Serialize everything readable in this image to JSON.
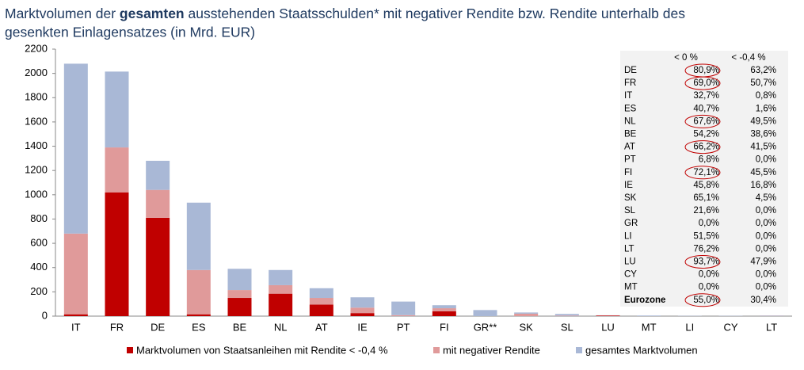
{
  "chart_data": {
    "type": "stacked_bar",
    "title": [
      "Marktvolumen der ",
      "gesamten",
      " ausstehenden Staatsschulden* mit negativer Rendite bzw. Rendite unterhalb des",
      "gesenkten Einlagensatzes (in Mrd. EUR)"
    ],
    "categories": [
      "IT",
      "FR",
      "DE",
      "ES",
      "BE",
      "NL",
      "AT",
      "IE",
      "PT",
      "FI",
      "GR**",
      "SK",
      "SL",
      "LU",
      "MT",
      "LI",
      "CY",
      "LT"
    ],
    "series": [
      {
        "name": "Marktvolumen von Staatsanleihen mit Rendite < -0,4 %",
        "color": "#c00000",
        "values": [
          15,
          1020,
          810,
          15,
          150,
          185,
          95,
          25,
          0,
          40,
          0,
          0,
          0,
          5,
          0,
          0,
          0,
          0
        ]
      },
      {
        "name": "mit negativer Rendite",
        "color": "#e09a9a",
        "values": [
          665,
          370,
          230,
          365,
          65,
          70,
          55,
          45,
          8,
          25,
          0,
          20,
          4,
          1,
          0,
          0,
          0,
          2
        ]
      },
      {
        "name": "gesamtes Marktvolumen",
        "color": "#a9b8d6",
        "values": [
          1400,
          625,
          240,
          555,
          175,
          125,
          80,
          85,
          112,
          25,
          50,
          10,
          14,
          1,
          5,
          2,
          2,
          3
        ]
      }
    ],
    "ylim": [
      0,
      2200
    ],
    "yticks": [
      0,
      200,
      400,
      600,
      800,
      1000,
      1200,
      1400,
      1600,
      1800,
      2000,
      2200
    ],
    "grid": false,
    "legend": "bottom"
  },
  "table": {
    "columns": [
      "< 0 %",
      "< -0,4 %"
    ],
    "rows": [
      [
        "DE",
        "80,9%",
        "63,2%"
      ],
      [
        "FR",
        "69,0%",
        "50,7%"
      ],
      [
        "IT",
        "32,7%",
        "0,8%"
      ],
      [
        "ES",
        "40,7%",
        "1,6%"
      ],
      [
        "NL",
        "67,6%",
        "49,5%"
      ],
      [
        "BE",
        "54,2%",
        "38,6%"
      ],
      [
        "AT",
        "66,2%",
        "41,5%"
      ],
      [
        "PT",
        "6,8%",
        "0,0%"
      ],
      [
        "FI",
        "72,1%",
        "45,5%"
      ],
      [
        "IE",
        "45,8%",
        "16,8%"
      ],
      [
        "SK",
        "65,1%",
        "4,5%"
      ],
      [
        "SL",
        "21,6%",
        "0,0%"
      ],
      [
        "GR",
        "0,0%",
        "0,0%"
      ],
      [
        "LI",
        "51,5%",
        "0,0%"
      ],
      [
        "LT",
        "76,2%",
        "0,0%"
      ],
      [
        "LU",
        "93,7%",
        "47,9%"
      ],
      [
        "CY",
        "0,0%",
        "0,0%"
      ],
      [
        "MT",
        "0,0%",
        "0,0%"
      ],
      [
        "Eurozone",
        "55,0%",
        "30,4%"
      ]
    ]
  }
}
